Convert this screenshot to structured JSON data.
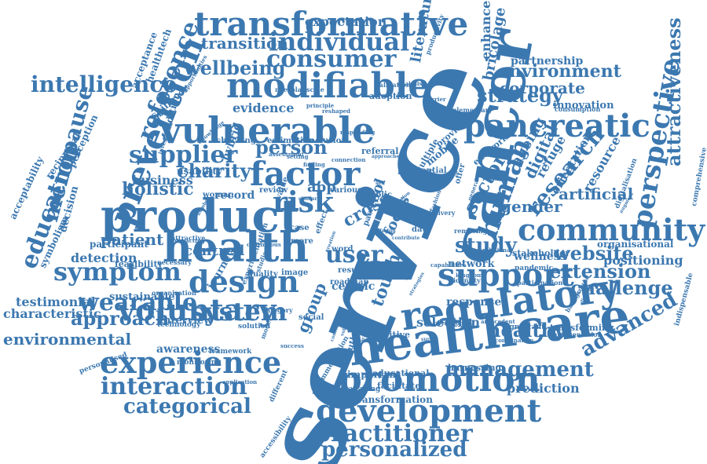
{
  "colors": {
    "text": "#3c78b0",
    "background": "#ffffff"
  },
  "words": [
    {
      "text": "service",
      "weight": 100
    },
    {
      "text": "healthcare",
      "weight": 46
    },
    {
      "text": "cancer",
      "weight": 44
    },
    {
      "text": "product",
      "weight": 43
    },
    {
      "text": "health",
      "weight": 42
    },
    {
      "text": "vulnerable",
      "weight": 40
    },
    {
      "text": "regulatory",
      "weight": 40
    },
    {
      "text": "development",
      "weight": 36
    },
    {
      "text": "modifiable",
      "weight": 34
    },
    {
      "text": "community",
      "weight": 34
    },
    {
      "text": "promotion",
      "weight": 34
    },
    {
      "text": "transformative",
      "weight": 32
    },
    {
      "text": "pancreatic",
      "weight": 32
    },
    {
      "text": "support",
      "weight": 32
    },
    {
      "text": "design",
      "weight": 31
    },
    {
      "text": "experience",
      "weight": 31
    },
    {
      "text": "factor",
      "weight": 30
    },
    {
      "text": "prevention",
      "weight": 30
    },
    {
      "text": "human",
      "weight": 29
    },
    {
      "text": "education",
      "weight": 28
    },
    {
      "text": "perspective",
      "weight": 28
    },
    {
      "text": "voluntary",
      "weight": 27
    },
    {
      "text": "wearable",
      "weight": 27
    },
    {
      "text": "symptom",
      "weight": 27
    },
    {
      "text": "system",
      "weight": 27
    },
    {
      "text": "interaction",
      "weight": 26
    },
    {
      "text": "risk",
      "weight": 26
    },
    {
      "text": "consumer",
      "weight": 25
    },
    {
      "text": "individual",
      "weight": 25
    },
    {
      "text": "supplier",
      "weight": 25
    },
    {
      "text": "reference",
      "weight": 25
    },
    {
      "text": "user",
      "weight": 25
    },
    {
      "text": "management",
      "weight": 24
    },
    {
      "text": "practitioner",
      "weight": 24
    },
    {
      "text": "menopause",
      "weight": 24
    },
    {
      "text": "research",
      "weight": 24
    },
    {
      "text": "attractiveness",
      "weight": 24
    },
    {
      "text": "categorical",
      "weight": 22
    },
    {
      "text": "personalized",
      "weight": 22
    },
    {
      "text": "extension",
      "weight": 22
    },
    {
      "text": "advanced",
      "weight": 22
    },
    {
      "text": "study",
      "weight": 22
    },
    {
      "text": "intelligence",
      "weight": 21
    },
    {
      "text": "wellbeing",
      "weight": 21
    },
    {
      "text": "charity",
      "weight": 21
    },
    {
      "text": "approach",
      "weight": 21
    },
    {
      "text": "website",
      "weight": 20
    },
    {
      "text": "challenge",
      "weight": 20
    },
    {
      "text": "healthy",
      "weight": 20
    },
    {
      "text": "person",
      "weight": 19
    },
    {
      "text": "strategy",
      "weight": 19
    },
    {
      "text": "sector",
      "weight": 19
    },
    {
      "text": "environmental",
      "weight": 18
    },
    {
      "text": "touch",
      "weight": 18
    },
    {
      "text": "environment",
      "weight": 18
    },
    {
      "text": "corporate",
      "weight": 18
    },
    {
      "text": "holistic",
      "weight": 18
    },
    {
      "text": "centred",
      "weight": 17
    },
    {
      "text": "transition",
      "weight": 17
    },
    {
      "text": "cross",
      "weight": 17
    },
    {
      "text": "gender",
      "weight": 17
    },
    {
      "text": "group",
      "weight": 17
    },
    {
      "text": "patient",
      "weight": 17
    },
    {
      "text": "digital",
      "weight": 17
    },
    {
      "text": "artificial",
      "weight": 16
    },
    {
      "text": "focus",
      "weight": 16
    },
    {
      "text": "literature",
      "weight": 16
    },
    {
      "text": "ageing",
      "weight": 16
    },
    {
      "text": "bricolage",
      "weight": 16
    },
    {
      "text": "enhanced",
      "weight": 15
    },
    {
      "text": "expectation",
      "weight": 15
    },
    {
      "text": "evidence",
      "weight": 14
    },
    {
      "text": "business",
      "weight": 14
    },
    {
      "text": "characteristic",
      "weight": 14
    },
    {
      "text": "testimonial",
      "weight": 14
    },
    {
      "text": "detection",
      "weight": 14
    },
    {
      "text": "prediction",
      "weight": 14
    },
    {
      "text": "selection",
      "weight": 14
    },
    {
      "text": "positioning",
      "weight": 14
    },
    {
      "text": "resource",
      "weight": 14
    },
    {
      "text": "app",
      "weight": 14
    },
    {
      "text": "refuge",
      "weight": 14
    },
    {
      "text": "orientation",
      "weight": 14
    },
    {
      "text": "tool",
      "weight": 14
    },
    {
      "text": "record",
      "weight": 13
    },
    {
      "text": "awareness",
      "weight": 13
    },
    {
      "text": "partnership",
      "weight": 13
    },
    {
      "text": "wellness",
      "weight": 13
    },
    {
      "text": "response",
      "weight": 13
    },
    {
      "text": "organisational",
      "weight": 12
    },
    {
      "text": "centric",
      "weight": 12
    },
    {
      "text": "hybrid",
      "weight": 12
    },
    {
      "text": "interview",
      "weight": 12
    },
    {
      "text": "sustainable",
      "weight": 12
    },
    {
      "text": "journey",
      "weight": 12
    },
    {
      "text": "network",
      "weight": 12
    },
    {
      "text": "innovation",
      "weight": 12
    },
    {
      "text": "mobile",
      "weight": 12
    },
    {
      "text": "decision",
      "weight": 12
    },
    {
      "text": "usability",
      "weight": 12
    },
    {
      "text": "participant",
      "weight": 12
    },
    {
      "text": "transformation",
      "weight": 11
    },
    {
      "text": "important",
      "weight": 11
    },
    {
      "text": "acceptability",
      "weight": 11
    },
    {
      "text": "symbolism",
      "weight": 11
    },
    {
      "text": "reciprocal",
      "weight": 11
    },
    {
      "text": "acceptance",
      "weight": 11
    },
    {
      "text": "healthtech",
      "weight": 11
    },
    {
      "text": "spillover",
      "weight": 11
    },
    {
      "text": "condition",
      "weight": 11
    },
    {
      "text": "perception",
      "weight": 11
    },
    {
      "text": "feasibility",
      "weight": 10
    },
    {
      "text": "mouth",
      "weight": 10
    },
    {
      "text": "positive",
      "weight": 10
    },
    {
      "text": "educational",
      "weight": 10
    },
    {
      "text": "facilitate",
      "weight": 10
    },
    {
      "text": "harnessing",
      "weight": 10
    },
    {
      "text": "transforming",
      "weight": 10
    },
    {
      "text": "stakeholder",
      "weight": 10
    },
    {
      "text": "enterprise",
      "weight": 10
    },
    {
      "text": "multiple",
      "weight": 10
    },
    {
      "text": "learner",
      "weight": 10
    },
    {
      "text": "referral",
      "weight": 10
    },
    {
      "text": "adoption",
      "weight": 10
    },
    {
      "text": "provider",
      "weight": 10
    },
    {
      "text": "checking",
      "weight": 10
    },
    {
      "text": "estimation",
      "weight": 10
    },
    {
      "text": "inclusion",
      "weight": 10
    },
    {
      "text": "review",
      "weight": 10
    },
    {
      "text": "value",
      "weight": 10
    },
    {
      "text": "public",
      "weight": 10
    },
    {
      "text": "various",
      "weight": 10
    },
    {
      "text": "quality",
      "weight": 10
    },
    {
      "text": "image",
      "weight": 10
    },
    {
      "text": "social",
      "weight": 10
    },
    {
      "text": "roadmap",
      "weight": 10
    },
    {
      "text": "result",
      "weight": 10
    },
    {
      "text": "more",
      "weight": 10
    },
    {
      "text": "case",
      "weight": 10
    },
    {
      "text": "word",
      "weight": 10
    },
    {
      "text": "pace",
      "weight": 10
    },
    {
      "text": "data",
      "weight": 10
    },
    {
      "text": "effect",
      "weight": 10
    },
    {
      "text": "offer",
      "weight": 10
    },
    {
      "text": "potential",
      "weight": 10
    },
    {
      "text": "woman",
      "weight": 10
    },
    {
      "text": "solution",
      "weight": 10
    },
    {
      "text": "framework",
      "weight": 9
    },
    {
      "text": "technology",
      "weight": 9
    },
    {
      "text": "monitoring",
      "weight": 9
    },
    {
      "text": "personalised",
      "weight": 9
    },
    {
      "text": "experimentation",
      "weight": 9
    },
    {
      "text": "different",
      "weight": 9
    },
    {
      "text": "accessibility",
      "weight": 9
    },
    {
      "text": "recommendation",
      "weight": 9
    },
    {
      "text": "managing",
      "weight": 9
    },
    {
      "text": "comprehensive",
      "weight": 9
    },
    {
      "text": "indispensable",
      "weight": 9
    },
    {
      "text": "digitalisation",
      "weight": 9
    },
    {
      "text": "pandemic",
      "weight": 9
    },
    {
      "text": "significant",
      "weight": 9
    },
    {
      "text": "validation",
      "weight": 9
    },
    {
      "text": "productivity",
      "weight": 8
    },
    {
      "text": "complementary",
      "weight": 8
    },
    {
      "text": "consumption",
      "weight": 8
    },
    {
      "text": "participation",
      "weight": 8
    },
    {
      "text": "background",
      "weight": 8
    },
    {
      "text": "representation",
      "weight": 8
    },
    {
      "text": "organization",
      "weight": 8
    },
    {
      "text": "attractive",
      "weight": 8
    },
    {
      "text": "necessary",
      "weight": 8
    },
    {
      "text": "removing",
      "weight": 8
    },
    {
      "text": "identity",
      "weight": 8
    },
    {
      "text": "delivery",
      "weight": 8
    },
    {
      "text": "studies",
      "weight": 8
    },
    {
      "text": "model",
      "weight": 8
    },
    {
      "text": "category",
      "weight": 8
    },
    {
      "text": "success",
      "weight": 8
    },
    {
      "text": "application",
      "weight": 7
    },
    {
      "text": "combination",
      "weight": 7
    },
    {
      "text": "antecedent",
      "weight": 7
    },
    {
      "text": "responding",
      "weight": 7
    },
    {
      "text": "principle",
      "weight": 7
    },
    {
      "text": "reshaped",
      "weight": 7
    },
    {
      "text": "investigate",
      "weight": 7
    },
    {
      "text": "knowledge",
      "weight": 7
    },
    {
      "text": "opportunities",
      "weight": 7
    },
    {
      "text": "continuous",
      "weight": 7
    },
    {
      "text": "interacting",
      "weight": 7
    },
    {
      "text": "fashion",
      "weight": 7
    },
    {
      "text": "relational",
      "weight": 7
    },
    {
      "text": "operational",
      "weight": 7
    },
    {
      "text": "capabilities",
      "weight": 7
    },
    {
      "text": "kingdom",
      "weight": 7
    },
    {
      "text": "barrier",
      "weight": 7
    },
    {
      "text": "analysis",
      "weight": 7
    },
    {
      "text": "general",
      "weight": 7
    },
    {
      "text": "connection",
      "weight": 7
    },
    {
      "text": "assessment",
      "weight": 7
    },
    {
      "text": "setting",
      "weight": 7
    },
    {
      "text": "finding",
      "weight": 7
    },
    {
      "text": "creation",
      "weight": 7
    },
    {
      "text": "similar",
      "weight": 7
    },
    {
      "text": "number",
      "weight": 7
    },
    {
      "text": "survey",
      "weight": 6
    },
    {
      "text": "activity",
      "weight": 6
    },
    {
      "text": "conclusion",
      "weight": 6
    },
    {
      "text": "volunteer",
      "weight": 6
    },
    {
      "text": "becoming",
      "weight": 6
    },
    {
      "text": "strategies",
      "weight": 6
    },
    {
      "text": "augment",
      "weight": 6
    },
    {
      "text": "disease",
      "weight": 6
    },
    {
      "text": "approaches",
      "weight": 6
    },
    {
      "text": "contribute",
      "weight": 6
    },
    {
      "text": "intervention",
      "weight": 6
    },
    {
      "text": "offering",
      "weight": 6
    },
    {
      "text": "self",
      "weight": 6
    },
    {
      "text": "need",
      "weight": 6
    },
    {
      "text": "plan",
      "weight": 6
    },
    {
      "text": "scale",
      "weight": 6
    }
  ]
}
